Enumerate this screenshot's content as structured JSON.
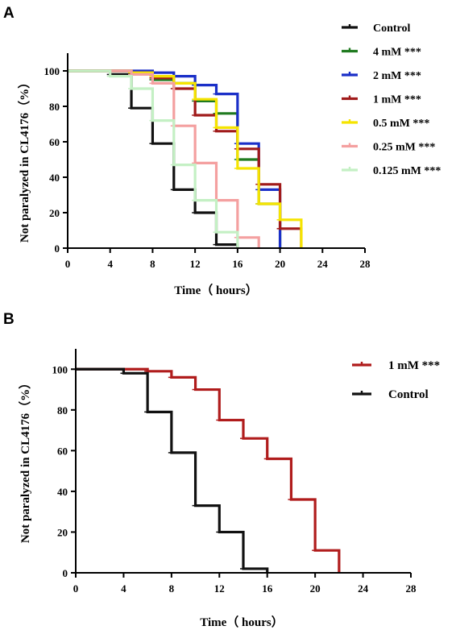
{
  "chart_data": [
    {
      "panel": "A",
      "type": "line",
      "step": true,
      "xlabel": "Time（ hours）",
      "ylabel": "Not paralyzed in CL4176（%）",
      "xlim": [
        0,
        28
      ],
      "ylim": [
        0,
        110
      ],
      "xticks": [
        0,
        4,
        8,
        12,
        16,
        20,
        24,
        28
      ],
      "yticks": [
        0,
        20,
        40,
        60,
        80,
        100
      ],
      "legend_position": "right",
      "series": [
        {
          "name": "Control",
          "color": "#111111",
          "x": [
            0,
            4,
            6,
            8,
            10,
            12,
            14,
            16
          ],
          "y": [
            100,
            98,
            79,
            59,
            33,
            20,
            2,
            0
          ]
        },
        {
          "name": "4 mM ***",
          "color": "#1f7a1f",
          "x": [
            0,
            4,
            6,
            8,
            10,
            12,
            14,
            16,
            18,
            20
          ],
          "y": [
            100,
            100,
            98,
            95,
            93,
            83,
            76,
            50,
            25,
            0
          ]
        },
        {
          "name": "2 mM ***",
          "color": "#1a2fc8",
          "x": [
            0,
            4,
            6,
            8,
            10,
            12,
            14,
            16,
            18,
            20
          ],
          "y": [
            100,
            100,
            100,
            99,
            97,
            92,
            87,
            59,
            33,
            0
          ]
        },
        {
          "name": "1 mM ***",
          "color": "#a01a1a",
          "x": [
            0,
            4,
            6,
            8,
            10,
            12,
            14,
            16,
            18,
            20,
            22
          ],
          "y": [
            100,
            100,
            99,
            96,
            90,
            75,
            66,
            56,
            36,
            11,
            0
          ]
        },
        {
          "name": "0.5 mM ***",
          "color": "#f5e400",
          "x": [
            0,
            4,
            6,
            8,
            10,
            12,
            14,
            16,
            18,
            20,
            22
          ],
          "y": [
            100,
            100,
            99,
            97,
            93,
            84,
            68,
            45,
            25,
            16,
            0
          ]
        },
        {
          "name": "0.25 mM ***",
          "color": "#f4a0a0",
          "x": [
            0,
            4,
            6,
            8,
            10,
            12,
            14,
            16,
            18
          ],
          "y": [
            100,
            100,
            98,
            93,
            69,
            48,
            27,
            6,
            0
          ]
        },
        {
          "name": "0.125 mM ***",
          "color": "#c4f0c4",
          "x": [
            0,
            4,
            6,
            8,
            10,
            12,
            14,
            16
          ],
          "y": [
            100,
            97,
            90,
            72,
            47,
            27,
            9,
            0
          ]
        }
      ]
    },
    {
      "panel": "B",
      "type": "line",
      "step": true,
      "xlabel": "Time（ hours）",
      "ylabel": "Not paralyzed in CL4176（%）",
      "xlim": [
        0,
        28
      ],
      "ylim": [
        0,
        110
      ],
      "xticks": [
        0,
        4,
        8,
        12,
        16,
        20,
        24,
        28
      ],
      "yticks": [
        0,
        20,
        40,
        60,
        80,
        100
      ],
      "legend_position": "top-right",
      "series": [
        {
          "name": "1 mM ***",
          "color": "#b01c1c",
          "x": [
            0,
            4,
            6,
            8,
            10,
            12,
            14,
            16,
            18,
            20,
            22
          ],
          "y": [
            100,
            100,
            99,
            96,
            90,
            75,
            66,
            56,
            36,
            11,
            0
          ]
        },
        {
          "name": "Control",
          "color": "#111111",
          "x": [
            0,
            4,
            6,
            8,
            10,
            12,
            14,
            16
          ],
          "y": [
            100,
            98,
            79,
            59,
            33,
            20,
            2,
            0
          ]
        }
      ]
    }
  ]
}
